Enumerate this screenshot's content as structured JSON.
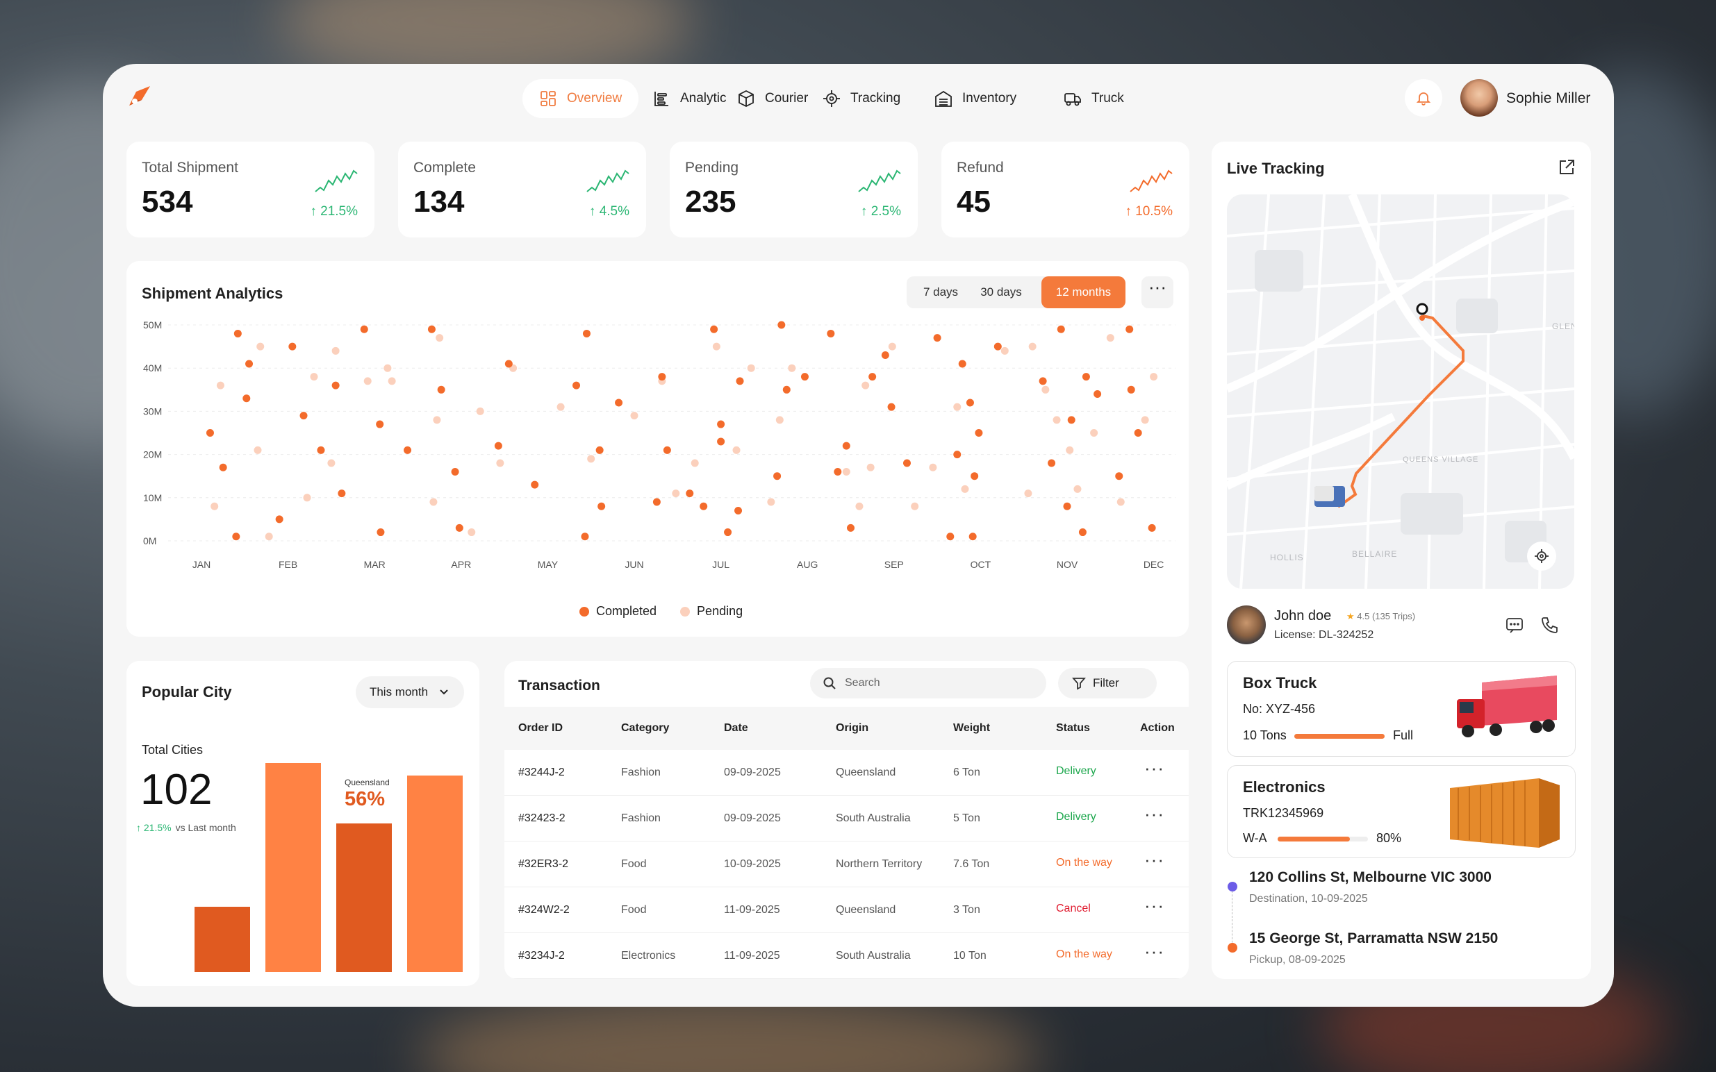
{
  "nav": {
    "items": [
      {
        "label": "Overview",
        "icon": "grid-icon",
        "active": true
      },
      {
        "label": "Analytic",
        "icon": "analytics-icon",
        "active": false
      },
      {
        "label": "Courier",
        "icon": "box-icon",
        "active": false
      },
      {
        "label": "Tracking",
        "icon": "crosshair-icon",
        "active": false
      },
      {
        "label": "Inventory",
        "icon": "warehouse-icon",
        "active": false
      },
      {
        "label": "Truck",
        "icon": "truck-icon",
        "active": false
      }
    ],
    "user_name": "Sophie Miller"
  },
  "stats": [
    {
      "label": "Total Shipment",
      "value": "534",
      "change": "21.5%",
      "trend": "up",
      "color": "#2bb673"
    },
    {
      "label": "Complete",
      "value": "134",
      "change": "4.5%",
      "trend": "up",
      "color": "#2bb673"
    },
    {
      "label": "Pending",
      "value": "235",
      "change": "2.5%",
      "trend": "up",
      "color": "#2bb673"
    },
    {
      "label": "Refund",
      "value": "45",
      "change": "10.5%",
      "trend": "up",
      "color": "#f36b2b"
    }
  ],
  "analytics": {
    "title": "Shipment Analytics",
    "ranges": [
      "7 days",
      "30 days",
      "12 months"
    ],
    "active_range": "12 months",
    "legend": [
      "Completed",
      "Pending"
    ]
  },
  "chart_data": {
    "type": "scatter",
    "x_categories": [
      "JAN",
      "FEB",
      "MAR",
      "APR",
      "MAY",
      "JUN",
      "JUL",
      "AUG",
      "SEP",
      "OCT",
      "NOV",
      "DEC"
    ],
    "y_ticks": [
      "50M",
      "40M",
      "30M",
      "20M",
      "10M",
      "0M"
    ],
    "ylim": [
      0,
      50
    ],
    "series": [
      {
        "name": "Completed",
        "color": "#f36b2b",
        "points": [
          [
            0.1,
            25
          ],
          [
            0.25,
            17
          ],
          [
            0.4,
            1
          ],
          [
            0.42,
            48
          ],
          [
            0.55,
            41
          ],
          [
            0.52,
            33
          ],
          [
            0.9,
            5
          ],
          [
            1.05,
            45
          ],
          [
            1.18,
            29
          ],
          [
            1.38,
            21
          ],
          [
            1.55,
            36
          ],
          [
            1.62,
            11
          ],
          [
            1.88,
            49
          ],
          [
            2.06,
            27
          ],
          [
            2.07,
            2
          ],
          [
            2.38,
            21
          ],
          [
            2.66,
            49
          ],
          [
            2.77,
            35
          ],
          [
            2.93,
            16
          ],
          [
            2.98,
            3
          ],
          [
            3.43,
            22
          ],
          [
            3.55,
            41
          ],
          [
            3.85,
            13
          ],
          [
            4.33,
            36
          ],
          [
            4.43,
            1
          ],
          [
            4.45,
            48
          ],
          [
            4.6,
            21
          ],
          [
            4.62,
            8
          ],
          [
            4.82,
            32
          ],
          [
            5.26,
            9
          ],
          [
            5.32,
            38
          ],
          [
            5.38,
            21
          ],
          [
            5.64,
            11
          ],
          [
            5.8,
            8
          ],
          [
            5.92,
            49
          ],
          [
            6.0,
            23
          ],
          [
            6.0,
            27
          ],
          [
            6.08,
            2
          ],
          [
            6.2,
            7
          ],
          [
            6.22,
            37
          ],
          [
            6.65,
            15
          ],
          [
            6.7,
            50
          ],
          [
            6.76,
            35
          ],
          [
            6.97,
            38
          ],
          [
            7.27,
            48
          ],
          [
            7.35,
            16
          ],
          [
            7.45,
            22
          ],
          [
            7.5,
            3
          ],
          [
            7.75,
            38
          ],
          [
            7.9,
            43
          ],
          [
            7.97,
            31
          ],
          [
            8.15,
            18
          ],
          [
            8.5,
            47
          ],
          [
            8.65,
            1
          ],
          [
            8.73,
            20
          ],
          [
            8.79,
            41
          ],
          [
            8.88,
            32
          ],
          [
            8.93,
            15
          ],
          [
            8.91,
            1
          ],
          [
            8.98,
            25
          ],
          [
            9.2,
            45
          ],
          [
            9.72,
            37
          ],
          [
            9.82,
            18
          ],
          [
            9.93,
            49
          ],
          [
            10.0,
            8
          ],
          [
            10.05,
            28
          ],
          [
            10.18,
            2
          ],
          [
            10.22,
            38
          ],
          [
            10.35,
            34
          ],
          [
            10.6,
            15
          ],
          [
            10.72,
            49
          ],
          [
            10.74,
            35
          ],
          [
            10.82,
            25
          ],
          [
            10.98,
            3
          ]
        ]
      },
      {
        "name": "Pending",
        "color": "#fbd0bc",
        "points": [
          [
            0.15,
            8
          ],
          [
            0.22,
            36
          ],
          [
            0.68,
            45
          ],
          [
            0.65,
            21
          ],
          [
            0.78,
            1
          ],
          [
            1.22,
            10
          ],
          [
            1.3,
            38
          ],
          [
            1.5,
            18
          ],
          [
            1.55,
            44
          ],
          [
            1.92,
            37
          ],
          [
            2.15,
            40
          ],
          [
            2.2,
            37
          ],
          [
            2.68,
            9
          ],
          [
            2.72,
            28
          ],
          [
            2.75,
            47
          ],
          [
            3.12,
            2
          ],
          [
            3.22,
            30
          ],
          [
            3.45,
            18
          ],
          [
            3.6,
            40
          ],
          [
            4.15,
            31
          ],
          [
            4.5,
            19
          ],
          [
            5.0,
            29
          ],
          [
            5.32,
            37
          ],
          [
            5.48,
            11
          ],
          [
            5.7,
            18
          ],
          [
            5.95,
            45
          ],
          [
            6.18,
            21
          ],
          [
            6.35,
            40
          ],
          [
            6.58,
            9
          ],
          [
            6.68,
            28
          ],
          [
            6.82,
            40
          ],
          [
            7.45,
            16
          ],
          [
            7.6,
            8
          ],
          [
            7.67,
            36
          ],
          [
            7.73,
            17
          ],
          [
            7.98,
            45
          ],
          [
            8.24,
            8
          ],
          [
            8.45,
            17
          ],
          [
            8.73,
            31
          ],
          [
            8.82,
            12
          ],
          [
            9.28,
            44
          ],
          [
            9.55,
            11
          ],
          [
            9.6,
            45
          ],
          [
            9.75,
            35
          ],
          [
            9.88,
            28
          ],
          [
            10.03,
            21
          ],
          [
            10.12,
            12
          ],
          [
            10.31,
            25
          ],
          [
            10.5,
            47
          ],
          [
            10.62,
            9
          ],
          [
            10.9,
            28
          ],
          [
            11.0,
            38
          ]
        ]
      }
    ]
  },
  "popular_city": {
    "title": "Popular City",
    "period": "This month",
    "total_label": "Total Cities",
    "total_value": "102",
    "change": "21.5%",
    "change_suffix": "vs Last  month",
    "highlight_label": "Queensland",
    "highlight_value": "56%",
    "bars": [
      0.3,
      0.96,
      0.68,
      0.9
    ]
  },
  "transactions": {
    "title": "Transaction",
    "search_placeholder": "Search",
    "filter_label": "Filter",
    "columns": [
      "Order ID",
      "Category",
      "Date",
      "Origin",
      "Weight",
      "Status",
      "Action"
    ],
    "rows": [
      {
        "id": "#3244J-2",
        "category": "Fashion",
        "date": "09-09-2025",
        "origin": "Queensland",
        "weight": "6 Ton",
        "status": "Delivery",
        "status_color": "#1aa64b"
      },
      {
        "id": "#32423-2",
        "category": "Fashion",
        "date": "09-09-2025",
        "origin": "South Australia",
        "weight": "5 Ton",
        "status": "Delivery",
        "status_color": "#1aa64b"
      },
      {
        "id": "#32ER3-2",
        "category": "Food",
        "date": "10-09-2025",
        "origin": "Northern Territory",
        "weight": "7.6 Ton",
        "status": "On the way",
        "status_color": "#f36b2b"
      },
      {
        "id": "#324W2-2",
        "category": "Food",
        "date": "11-09-2025",
        "origin": "Queensland",
        "weight": "3 Ton",
        "status": "Cancel",
        "status_color": "#e01b2f"
      },
      {
        "id": "#3234J-2",
        "category": "Electronics",
        "date": "11-09-2025",
        "origin": "South Australia",
        "weight": "10 Ton",
        "status": "On the way",
        "status_color": "#f36b2b"
      }
    ]
  },
  "live_tracking": {
    "title": "Live Tracking",
    "map_labels": [
      "QUEENS VILLAGE",
      "HOLLIS",
      "BELLAIRE",
      "GLEN"
    ],
    "driver": {
      "name": "John doe",
      "rating": "4.5 (135 Trips)",
      "license": "License: DL-324252"
    },
    "truck": {
      "title": "Box Truck",
      "number": "No: XYZ-456",
      "capacity": "10 Tons",
      "fill": 1.0,
      "fill_label": "Full"
    },
    "cargo": {
      "title": "Electronics",
      "code": "TRK12345969",
      "route": "W-A",
      "fill": 0.8,
      "fill_label": "80%"
    },
    "destination": {
      "address": "120 Collins St, Melbourne VIC 3000",
      "meta": "Destination, 10-09-2025",
      "dot_color": "#6c5ce7"
    },
    "pickup": {
      "address": "15 George St, Parramatta NSW 2150",
      "meta": "Pickup, 08-09-2025",
      "dot_color": "#f36b2b"
    }
  }
}
